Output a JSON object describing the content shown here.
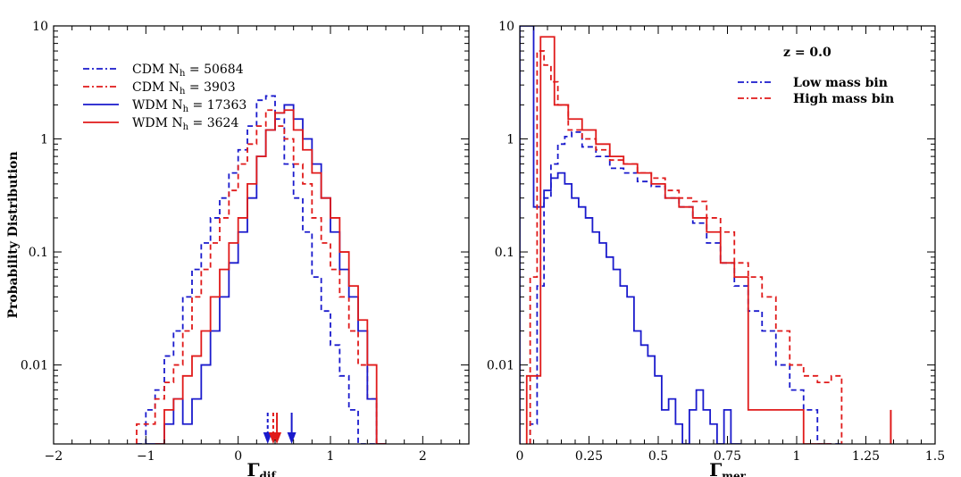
{
  "colors": {
    "blue": "#1a1acc",
    "red": "#e01a1a",
    "axis": "#000000"
  },
  "chart_data": [
    {
      "type": "line",
      "drawstyle": "steps",
      "xlabel": "Γ",
      "xlabel_sub": "dif",
      "ylabel": "Probability Distribution",
      "xlim": [
        -2,
        2.5
      ],
      "ylim": [
        0.002,
        10
      ],
      "yscale": "log",
      "xticks": [
        -2,
        -1,
        0,
        1,
        2
      ],
      "xtick_labels": [
        "−2",
        "−1",
        "0",
        "1",
        "2"
      ],
      "yticks": [
        0.01,
        0.1,
        1,
        10
      ],
      "ytick_labels": [
        "0.01",
        "0.1",
        "1",
        "10"
      ],
      "legend_placement": "top-left",
      "series": [
        {
          "name": "CDM N",
          "name_sub": "h",
          "name_suffix": " = 50684",
          "color": "blue",
          "style": "dashdot",
          "legend_only": true
        },
        {
          "name": "CDM N",
          "name_sub": "h",
          "name_suffix": " = 3903",
          "color": "red",
          "style": "dashdot",
          "legend_only": true
        },
        {
          "name": "WDM N",
          "name_sub": "h",
          "name_suffix": " = 17363",
          "color": "blue",
          "style": "solid",
          "legend_only": true
        },
        {
          "name": "WDM N",
          "name_sub": "h",
          "name_suffix": " = 3624",
          "color": "red",
          "style": "solid",
          "legend_only": true
        },
        {
          "color": "blue",
          "style": "dashed",
          "x": [
            -1.05,
            -0.95,
            -0.85,
            -0.75,
            -0.65,
            -0.55,
            -0.45,
            -0.35,
            -0.25,
            -0.15,
            -0.05,
            0.05,
            0.15,
            0.25,
            0.35,
            0.45,
            0.55,
            0.65,
            0.75,
            0.85,
            0.95,
            1.05,
            1.15,
            1.25,
            1.35,
            1.45
          ],
          "y": [
            0.002,
            0.004,
            0.006,
            0.012,
            0.02,
            0.04,
            0.07,
            0.12,
            0.2,
            0.3,
            0.5,
            0.8,
            1.3,
            2.2,
            2.4,
            1.5,
            0.6,
            0.3,
            0.15,
            0.06,
            0.03,
            0.015,
            0.008,
            0.004,
            0.002,
            0.002
          ]
        },
        {
          "color": "red",
          "style": "dashed",
          "x": [
            -1.05,
            -0.95,
            -0.85,
            -0.75,
            -0.65,
            -0.55,
            -0.45,
            -0.35,
            -0.25,
            -0.15,
            -0.05,
            0.05,
            0.15,
            0.25,
            0.35,
            0.45,
            0.55,
            0.65,
            0.75,
            0.85,
            0.95,
            1.05,
            1.15,
            1.25,
            1.35,
            1.45,
            1.55
          ],
          "y": [
            0.003,
            0.003,
            0.005,
            0.007,
            0.01,
            0.02,
            0.04,
            0.07,
            0.12,
            0.2,
            0.35,
            0.6,
            0.9,
            1.3,
            1.8,
            1.3,
            1.0,
            0.6,
            0.4,
            0.2,
            0.12,
            0.07,
            0.04,
            0.02,
            0.01,
            0.005,
            0.002
          ]
        },
        {
          "color": "blue",
          "style": "solid",
          "x": [
            -0.95,
            -0.85,
            -0.75,
            -0.65,
            -0.55,
            -0.45,
            -0.35,
            -0.25,
            -0.15,
            -0.05,
            0.05,
            0.15,
            0.25,
            0.35,
            0.45,
            0.55,
            0.65,
            0.75,
            0.85,
            0.95,
            1.05,
            1.15,
            1.25,
            1.35,
            1.45,
            1.55
          ],
          "y": [
            0.002,
            0.002,
            0.003,
            0.005,
            0.003,
            0.005,
            0.01,
            0.02,
            0.04,
            0.08,
            0.15,
            0.3,
            0.7,
            1.2,
            1.7,
            2.0,
            1.5,
            1.0,
            0.6,
            0.3,
            0.15,
            0.07,
            0.04,
            0.02,
            0.005,
            0.002
          ]
        },
        {
          "color": "red",
          "style": "solid",
          "x": [
            -0.85,
            -0.75,
            -0.65,
            -0.55,
            -0.45,
            -0.35,
            -0.25,
            -0.15,
            -0.05,
            0.05,
            0.15,
            0.25,
            0.35,
            0.45,
            0.55,
            0.65,
            0.75,
            0.85,
            0.95,
            1.05,
            1.15,
            1.25,
            1.35,
            1.45,
            1.55
          ],
          "y": [
            0.002,
            0.004,
            0.005,
            0.008,
            0.012,
            0.02,
            0.04,
            0.07,
            0.12,
            0.2,
            0.4,
            0.7,
            1.2,
            1.7,
            1.8,
            1.2,
            0.8,
            0.5,
            0.3,
            0.2,
            0.1,
            0.05,
            0.025,
            0.01,
            0.002
          ]
        }
      ],
      "arrows": [
        {
          "x": 0.32,
          "color": "blue",
          "style": "dashed"
        },
        {
          "x": 0.38,
          "color": "red",
          "style": "dashed"
        },
        {
          "x": 0.42,
          "color": "red",
          "style": "solid"
        },
        {
          "x": 0.58,
          "color": "blue",
          "style": "solid"
        }
      ]
    },
    {
      "type": "line",
      "drawstyle": "steps",
      "xlabel": "Γ",
      "xlabel_sub": "mer",
      "ylabel": "",
      "xlim": [
        0,
        1.5
      ],
      "ylim": [
        0.002,
        10
      ],
      "yscale": "log",
      "xticks": [
        0,
        0.25,
        0.5,
        0.75,
        1,
        1.25,
        1.5
      ],
      "xtick_labels": [
        "0",
        "0.25",
        "0.5",
        "0.75",
        "1",
        "1.25",
        "1.5"
      ],
      "yticks": [
        0.01,
        0.1,
        1,
        10
      ],
      "ytick_labels": [
        "0.01",
        "0.1",
        "1",
        "10"
      ],
      "legend_title": "z = 0.0",
      "legend_placement": "top-right",
      "series": [
        {
          "name": "Low mass bin",
          "color": "blue",
          "style": "dashdot",
          "legend_only": true
        },
        {
          "name": "High mass bin",
          "color": "red",
          "style": "dashdot",
          "legend_only": true
        },
        {
          "color": "blue",
          "style": "solid",
          "x": [
            0.025,
            0.075,
            0.1,
            0.125,
            0.15,
            0.175,
            0.2,
            0.225,
            0.25,
            0.275,
            0.3,
            0.325,
            0.35,
            0.375,
            0.4,
            0.425,
            0.45,
            0.475,
            0.5,
            0.525,
            0.55,
            0.575,
            0.6,
            0.625,
            0.65,
            0.675,
            0.7,
            0.725,
            0.75,
            0.775
          ],
          "y": [
            10,
            0.25,
            0.35,
            0.45,
            0.5,
            0.4,
            0.3,
            0.25,
            0.2,
            0.15,
            0.12,
            0.09,
            0.07,
            0.05,
            0.04,
            0.02,
            0.015,
            0.012,
            0.008,
            0.004,
            0.005,
            0.003,
            0.002,
            0.004,
            0.006,
            0.004,
            0.003,
            0.002,
            0.004,
            0.002
          ]
        },
        {
          "color": "blue",
          "style": "dashed",
          "x": [
            0.05,
            0.075,
            0.1,
            0.125,
            0.15,
            0.175,
            0.2,
            0.25,
            0.3,
            0.35,
            0.4,
            0.45,
            0.5,
            0.55,
            0.6,
            0.65,
            0.7,
            0.75,
            0.8,
            0.85,
            0.9,
            0.95,
            1.0,
            1.05,
            1.1,
            1.15
          ],
          "y": [
            0.003,
            0.05,
            0.3,
            0.6,
            0.9,
            1.05,
            1.15,
            0.85,
            0.7,
            0.55,
            0.5,
            0.42,
            0.38,
            0.3,
            0.25,
            0.18,
            0.12,
            0.08,
            0.05,
            0.03,
            0.02,
            0.01,
            0.006,
            0.004,
            0.002,
            0.002
          ]
        },
        {
          "color": "red",
          "style": "dashed",
          "x": [
            0.05,
            0.075,
            0.1,
            0.125,
            0.15,
            0.2,
            0.25,
            0.3,
            0.35,
            0.4,
            0.45,
            0.5,
            0.55,
            0.6,
            0.65,
            0.7,
            0.75,
            0.8,
            0.85,
            0.9,
            0.95,
            1.0,
            1.05,
            1.1,
            1.15
          ],
          "y": [
            0.06,
            6,
            4.5,
            3.2,
            2.0,
            1.2,
            1.0,
            0.8,
            0.65,
            0.6,
            0.5,
            0.45,
            0.35,
            0.3,
            0.28,
            0.2,
            0.15,
            0.08,
            0.06,
            0.04,
            0.02,
            0.01,
            0.008,
            0.007,
            0.008
          ]
        },
        {
          "color": "red",
          "style": "solid",
          "x": [
            0.05,
            0.1,
            0.15,
            0.2,
            0.25,
            0.3,
            0.35,
            0.4,
            0.45,
            0.5,
            0.55,
            0.6,
            0.65,
            0.7,
            0.75,
            0.8,
            0.85,
            0.9,
            0.95,
            1.0,
            1.05,
            1.1
          ],
          "y": [
            0.008,
            8,
            2.0,
            1.5,
            1.2,
            0.9,
            0.7,
            0.6,
            0.5,
            0.4,
            0.3,
            0.25,
            0.2,
            0.15,
            0.08,
            0.06,
            0.004,
            0.004,
            0.004,
            0.004,
            0.002,
            0.002
          ]
        }
      ],
      "isolated_spikes": [
        {
          "x": 1.34,
          "y": 0.004,
          "color": "red"
        }
      ]
    }
  ]
}
